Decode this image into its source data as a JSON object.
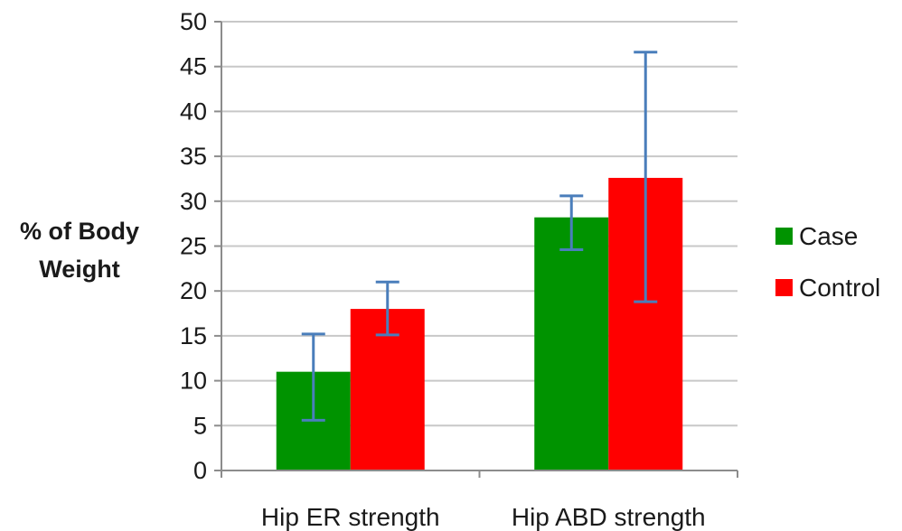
{
  "chart_data": {
    "type": "bar",
    "title": "",
    "xlabel": "",
    "ylabel_lines": [
      "% of Body",
      "Weight"
    ],
    "categories": [
      "Hip ER strength",
      "Hip ABD strength"
    ],
    "ylim": [
      0,
      50
    ],
    "yticks": [
      0,
      5,
      10,
      15,
      20,
      25,
      30,
      35,
      40,
      45,
      50
    ],
    "grid": true,
    "legend_position": "right",
    "series": [
      {
        "name": "Case",
        "color": "#009300",
        "values": [
          11,
          28.2
        ],
        "error_low": [
          5.6,
          24.6
        ],
        "error_high": [
          15.2,
          30.6
        ]
      },
      {
        "name": "Control",
        "color": "#ff0000",
        "values": [
          18,
          32.6
        ],
        "error_low": [
          15.1,
          18.8
        ],
        "error_high": [
          21,
          46.6
        ]
      }
    ],
    "error_bar_color": "#4a7ebb",
    "grid_color": "#c8c8c8"
  }
}
